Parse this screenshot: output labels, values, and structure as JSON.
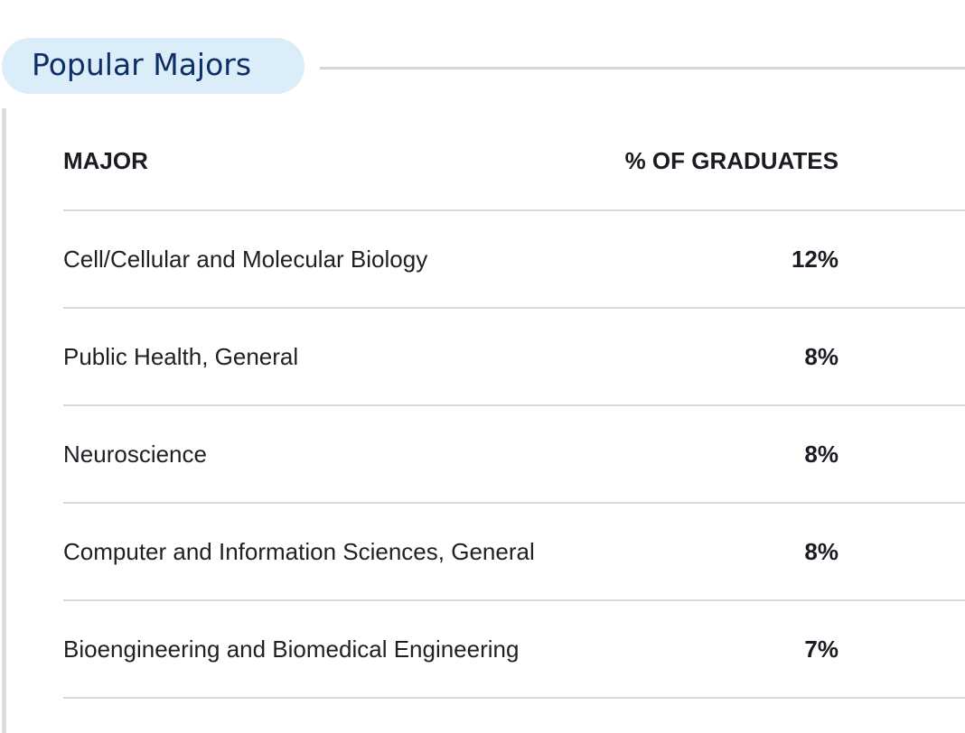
{
  "section": {
    "title": "Popular Majors"
  },
  "table": {
    "headers": {
      "major": "MAJOR",
      "percent": "% OF GRADUATES"
    },
    "rows": [
      {
        "major": "Cell/Cellular and Molecular Biology",
        "percent": "12%"
      },
      {
        "major": "Public Health, General",
        "percent": "8%"
      },
      {
        "major": "Neuroscience",
        "percent": "8%"
      },
      {
        "major": "Computer and Information Sciences, General",
        "percent": "8%"
      },
      {
        "major": "Bioengineering and Biomedical Engineering",
        "percent": "7%"
      }
    ]
  },
  "colors": {
    "pill_background": "#dbedf9",
    "pill_text": "#0e2f66",
    "divider": "#d9d9d9"
  }
}
